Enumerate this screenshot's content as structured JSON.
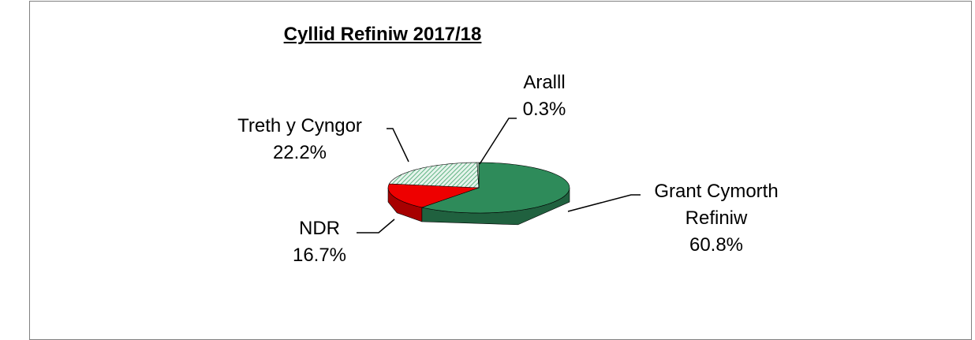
{
  "chart_data": {
    "type": "pie",
    "title": "Cyllid Refiniw 2017/18",
    "categories": [
      "Grant Cymorth Refiniw",
      "NDR",
      "Treth y Cyngor",
      "Aralll"
    ],
    "values": [
      60.8,
      16.7,
      22.2,
      0.3
    ],
    "value_labels": [
      "60.8%",
      "16.7%",
      "22.2%",
      "0.3%"
    ],
    "colors": [
      "#2e8b5a",
      "#ee0000",
      "#a9d9bd",
      "#c8e6d2"
    ]
  }
}
